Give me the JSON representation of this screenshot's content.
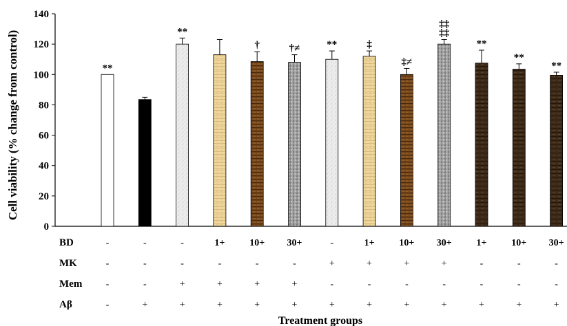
{
  "chart_data": {
    "type": "bar",
    "ylabel": "Cell viability (% change from control)",
    "xlabel": "Treatment groups",
    "ylim": [
      0,
      140
    ],
    "yticks": [
      "0",
      "20",
      "40",
      "60",
      "80",
      "100",
      "120",
      "140"
    ],
    "values": [
      100,
      83.5,
      120,
      113,
      108.5,
      108,
      110,
      112,
      100,
      120,
      107.5,
      103.5,
      99.5
    ],
    "errors": [
      0,
      1.5,
      4,
      10,
      6.5,
      5,
      5.5,
      3.5,
      4,
      3,
      8.5,
      3.5,
      2
    ],
    "annotations": [
      "**",
      "",
      "**",
      "",
      "†",
      "†≠",
      "**",
      "‡",
      "‡≠",
      "‡‡\n‡‡",
      "**",
      "**",
      "**"
    ],
    "bar_colors": [
      "#ffffff",
      "#000000",
      "#e6e6e6",
      "#e9cf94",
      "#6e4118",
      "#9a9a9a",
      "#ececec",
      "#e9cf94",
      "#7a4a1d",
      "#a3a3a3",
      "#3e2a19",
      "#4a3420",
      "#3b2717"
    ],
    "bar_patterns": [
      "plain",
      "plain",
      "speckle",
      "wood-light",
      "wood-brown",
      "granite",
      "speckle",
      "wood-light",
      "wood-brown",
      "granite",
      "wood-dark",
      "wood-dark",
      "wood-dark"
    ],
    "grid": false,
    "legend": "none"
  },
  "table": {
    "rows": [
      {
        "label": "BD",
        "cells": [
          "-",
          "-",
          "-",
          "1+",
          "10+",
          "30+",
          "-",
          "1+",
          "10+",
          "30+",
          "1+",
          "10+",
          "30+"
        ]
      },
      {
        "label": "MK",
        "cells": [
          "-",
          "-",
          "-",
          "-",
          "-",
          "-",
          "+",
          "+",
          "+",
          "+",
          "-",
          "-",
          "-"
        ]
      },
      {
        "label": "Mem",
        "cells": [
          "-",
          "-",
          "+",
          "+",
          "+",
          "+",
          "-",
          "-",
          "-",
          "-",
          "-",
          "-",
          "-"
        ]
      },
      {
        "label": "Aβ",
        "cells": [
          "-",
          "+",
          "+",
          "+",
          "+",
          "+",
          "+",
          "+",
          "+",
          "+",
          "+",
          "+",
          "+"
        ]
      }
    ]
  }
}
